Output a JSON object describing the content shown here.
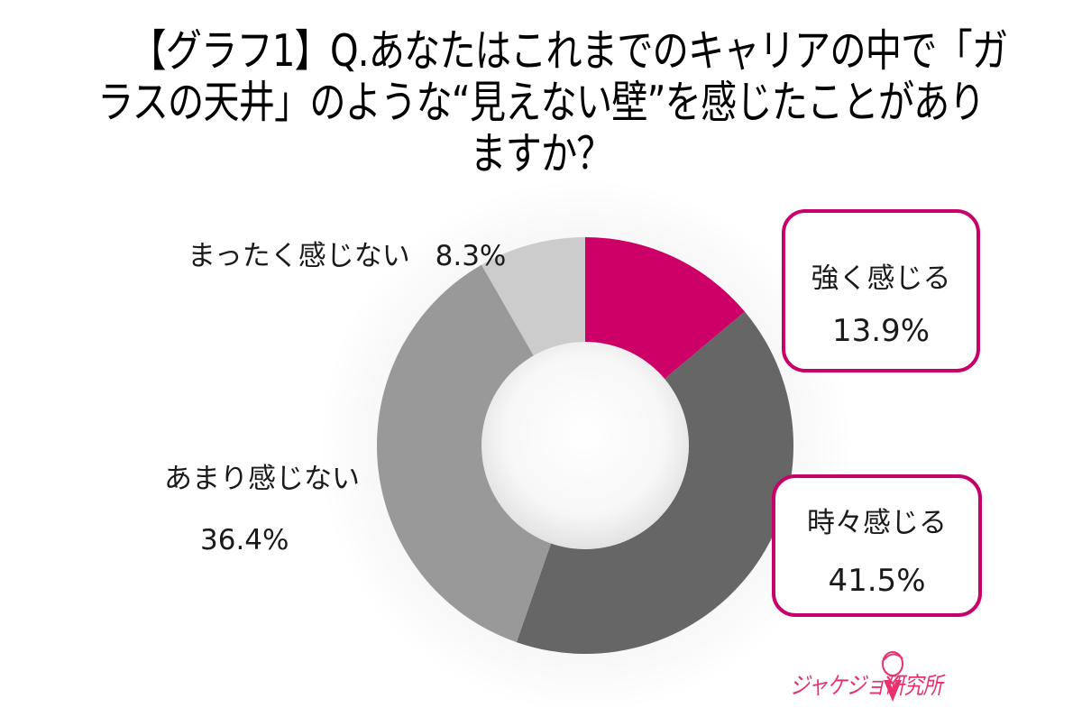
{
  "title": {
    "line1": "【グラフ1】Q.あなたはこれまでのキャリアの中で「ガ",
    "line2": "ラスの天井」のような“見えない壁”を感じたことがあり",
    "line3": "ますか？"
  },
  "colors": {
    "strong": "#CC0066",
    "sometimes": "#666666",
    "rarely": "#999999",
    "never": "#CCCCCC",
    "box_border": "#C8006A",
    "logo": "#E6336E"
  },
  "labels": {
    "strong": {
      "category": "強く感じる",
      "value": "13.9%"
    },
    "sometimes": {
      "category": "時々感じる",
      "value": "41.5%"
    },
    "rarely": {
      "category": "あまり感じない",
      "value": "36.4%"
    },
    "never": {
      "category": "まったく感じない",
      "value": "8.3%"
    }
  },
  "logo": {
    "text": "ジャケジョ研究所",
    "icon": "person-in-suit-icon"
  },
  "chart_data": {
    "type": "pie",
    "subtype": "donut",
    "title": "【グラフ1】Q.あなたはこれまでのキャリアの中で「ガラスの天井」のような“見えない壁”を感じたことがありますか？",
    "categories": [
      "強く感じる",
      "時々感じる",
      "あまり感じない",
      "まったく感じない"
    ],
    "values": [
      13.9,
      41.5,
      36.4,
      8.3
    ],
    "unit": "%",
    "colors": [
      "#CC0066",
      "#666666",
      "#999999",
      "#CCCCCC"
    ],
    "start_angle": "12 o'clock, clockwise",
    "legend": "none (direct data labels)"
  }
}
